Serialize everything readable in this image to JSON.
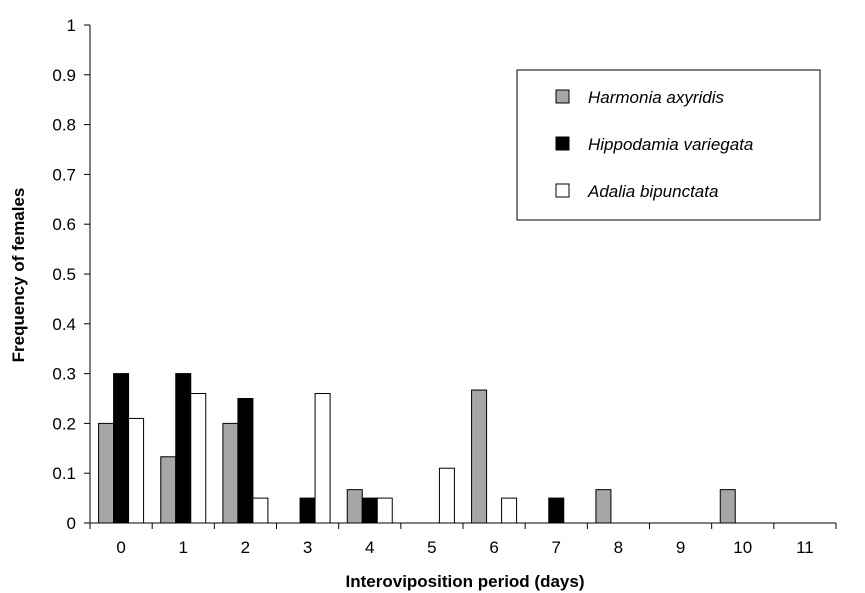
{
  "chart_data": {
    "type": "bar",
    "xlabel": "Interoviposition period (days)",
    "ylabel": "Frequency of females",
    "ylim": [
      0,
      1
    ],
    "yticks": [
      "0",
      "0.1",
      "0.2",
      "0.3",
      "0.4",
      "0.5",
      "0.6",
      "0.7",
      "0.8",
      "0.9",
      "1"
    ],
    "categories": [
      "0",
      "1",
      "2",
      "3",
      "4",
      "5",
      "6",
      "7",
      "8",
      "9",
      "10",
      "11"
    ],
    "grid": false,
    "legend_position": "top-right",
    "series": [
      {
        "name": "Harmonia axyridis",
        "color": "#a6a6a6",
        "values": [
          0.2,
          0.133,
          0.2,
          0,
          0.067,
          0,
          0.267,
          0,
          0.067,
          0,
          0.067,
          0
        ]
      },
      {
        "name": "Hippodamia variegata",
        "color": "#000000",
        "values": [
          0.3,
          0.3,
          0.25,
          0.05,
          0.05,
          0,
          0,
          0.05,
          0,
          0,
          0,
          0
        ]
      },
      {
        "name": "Adalia bipunctata",
        "color": "#ffffff",
        "values": [
          0.21,
          0.26,
          0.05,
          0.26,
          0.05,
          0.11,
          0.05,
          0,
          0,
          0,
          0,
          0
        ]
      }
    ]
  }
}
